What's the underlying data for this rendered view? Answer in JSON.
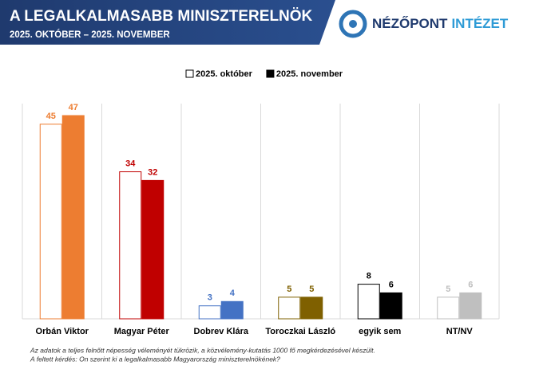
{
  "logo": {
    "primary": "NÉZŐPONT",
    "secondary": "INTÉZET"
  },
  "chart_data": {
    "type": "bar",
    "title": "A LEGALKALMASABB MINISZTERELNÖK",
    "subtitle": "2025. OKTÓBER – 2025. NOVEMBER",
    "categories": [
      "Orbán Viktor",
      "Magyar Péter",
      "Dobrev Klára",
      "Toroczkai László",
      "egyik sem",
      "NT/NV"
    ],
    "category_colors": [
      "#ed7d31",
      "#c00000",
      "#4472c4",
      "#7f6000",
      "#000000",
      "#bfbfbf"
    ],
    "series": [
      {
        "name": "2025. október",
        "color": "#ffffff",
        "values": [
          45,
          34,
          3,
          5,
          8,
          5
        ]
      },
      {
        "name": "2025. november",
        "color": "#000000",
        "values": [
          47,
          32,
          4,
          5,
          6,
          6
        ]
      }
    ],
    "notes": [
      "Az adatok a teljes felnőtt népesség véleményét tükrözik, a közvélemény-kutatás 1000 fő megkérdezésével készült.",
      "A feltett kérdés: On szerint ki a legalkalmasabb Magyarország miniszterelnökének?"
    ]
  }
}
